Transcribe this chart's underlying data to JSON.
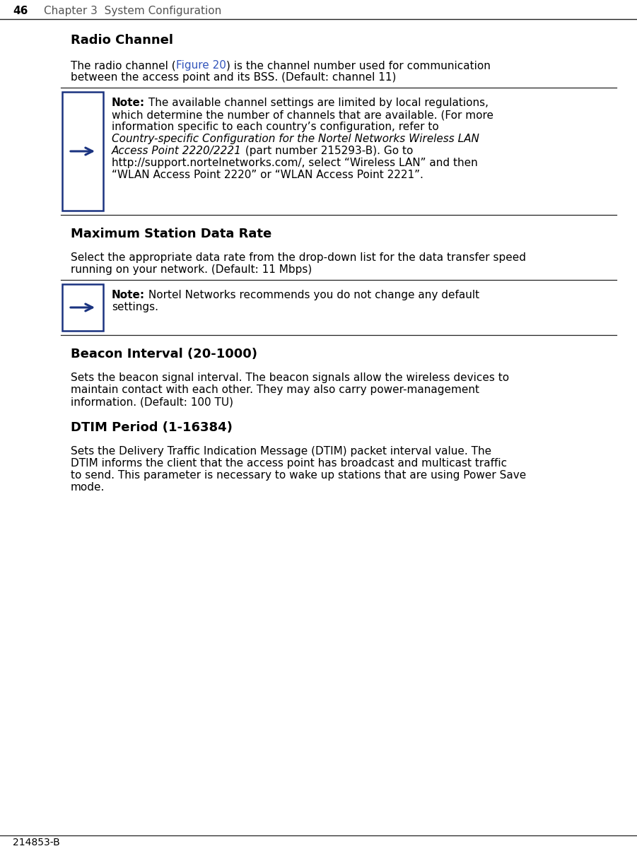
{
  "bg_color": "#ffffff",
  "text_color": "#000000",
  "link_color": "#3355bb",
  "note_border_color": "#1a3380",
  "header_page": "46",
  "header_chapter": "Chapter 3  System Configuration",
  "footer": "214853-B",
  "s1_heading": "Radio Channel",
  "s1_para_pre": "The radio channel (",
  "s1_para_link": "Figure 20",
  "s1_para_post": ") is the channel number used for communication",
  "s1_para_line2": "between the access point and its BSS. (Default: channel 11)",
  "note1_bold": "Note:",
  "note1_l1": " The available channel settings are limited by local regulations,",
  "note1_l2": "which determine the number of channels that are available. (For more",
  "note1_l3": "information specific to each country’s configuration, refer to",
  "note1_l4_italic": "Country-specific Configuration for the Nortel Networks Wireless LAN",
  "note1_l5_italic_pre": "Access Point 2220/2221",
  "note1_l5_post": " (part number 215293-B). Go to",
  "note1_l6": "http://support.nortelnetworks.com/, select “Wireless LAN” and then",
  "note1_l7": "“WLAN Access Point 2220” or “WLAN Access Point 2221”.",
  "s2_heading": "Maximum Station Data Rate",
  "s2_para_l1": "Select the appropriate data rate from the drop-down list for the data transfer speed",
  "s2_para_l2": "running on your network. (Default: 11 Mbps)",
  "note2_bold": "Note:",
  "note2_l1": " Nortel Networks recommends you do not change any default",
  "note2_l2": "settings.",
  "s3_heading": "Beacon Interval (20-1000)",
  "s3_para_l1": "Sets the beacon signal interval. The beacon signals allow the wireless devices to",
  "s3_para_l2": "maintain contact with each other. They may also carry power-management",
  "s3_para_l3": "information. (Default: 100 TU)",
  "s4_heading": "DTIM Period (1-16384)",
  "s4_para_l1": "Sets the Delivery Traffic Indication Message (DTIM) packet interval value. The",
  "s4_para_l2": "DTIM informs the client that the access point has broadcast and multicast traffic",
  "s4_para_l3": "to send. This parameter is necessary to wake up stations that are using Power Save",
  "s4_para_l4": "mode."
}
